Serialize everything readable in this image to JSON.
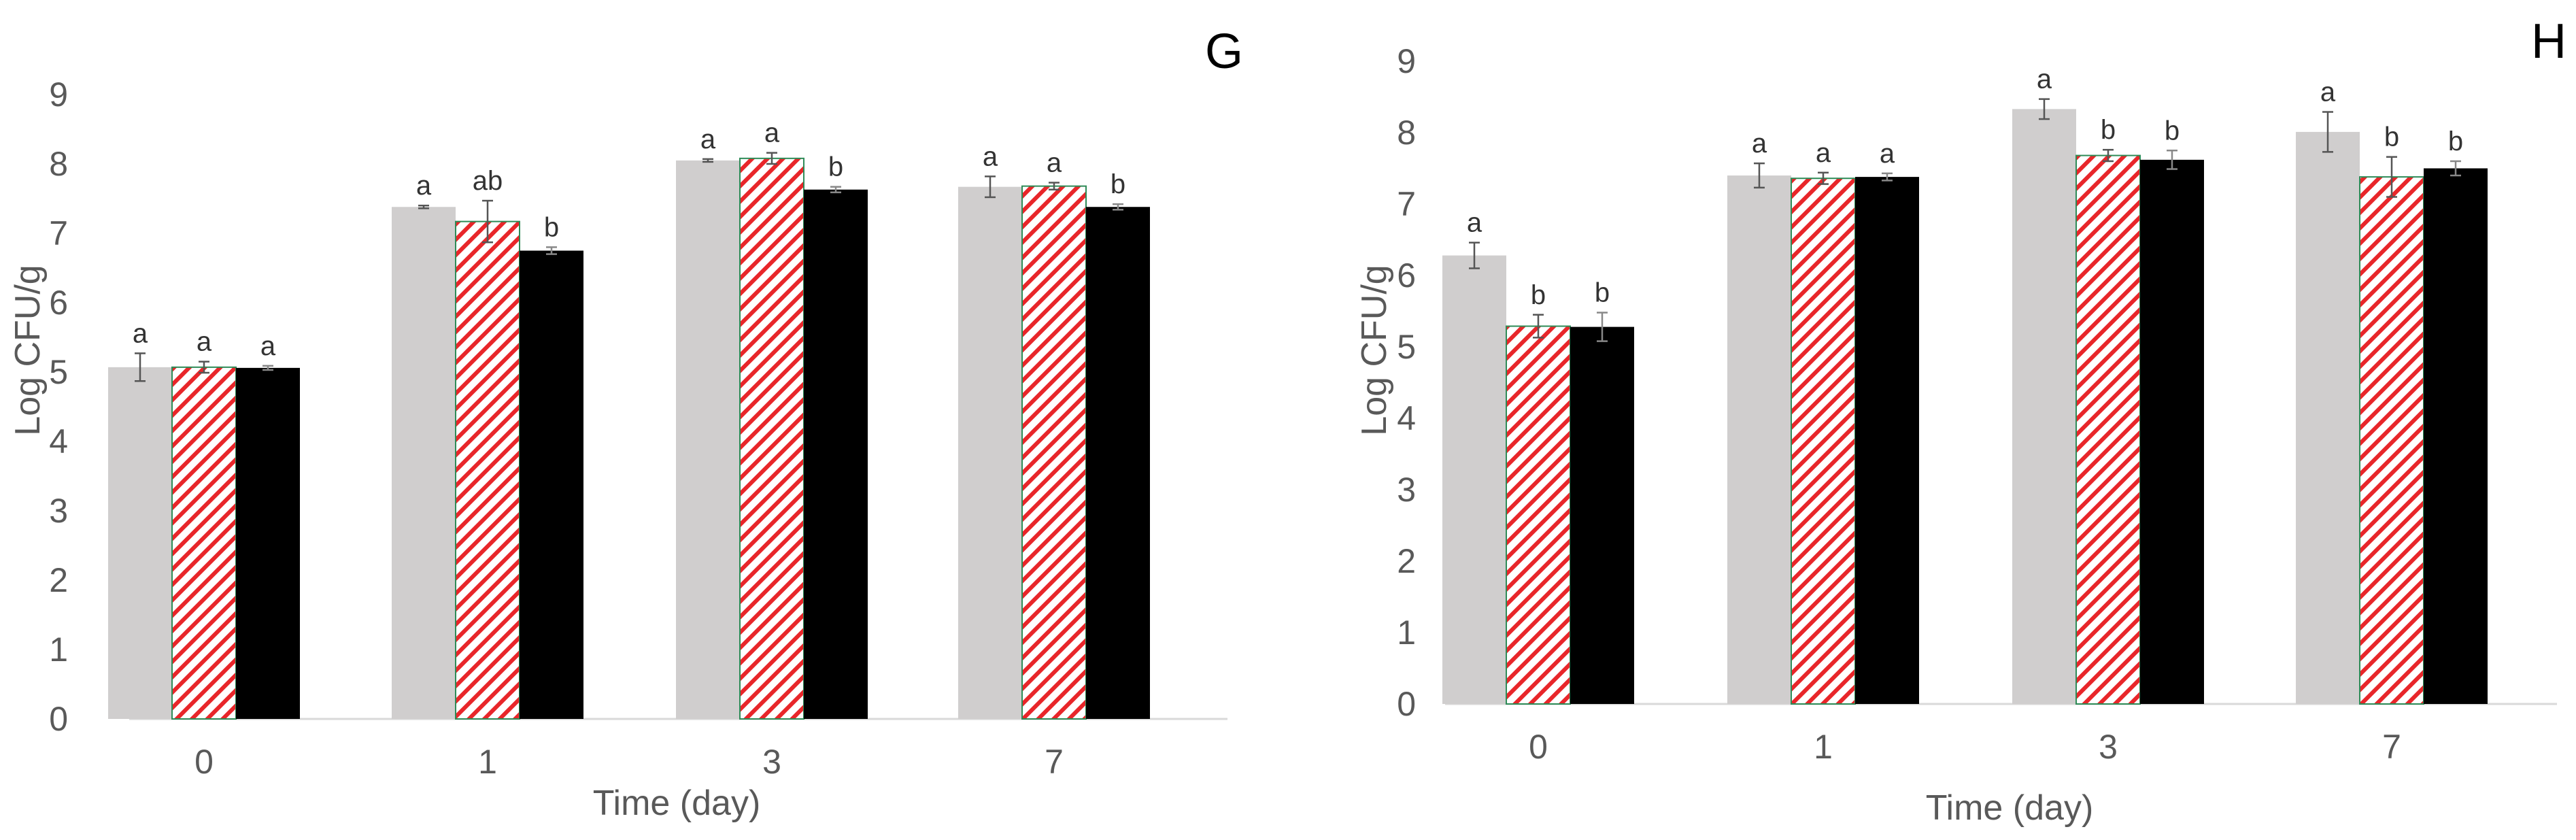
{
  "chart_data": [
    {
      "panel": "G",
      "type": "bar",
      "categories": [
        "0",
        "1",
        "3",
        "7"
      ],
      "xlabel": "Time (day)",
      "ylabel": "Log CFU/g",
      "ylim": [
        0,
        9
      ],
      "yticks": [
        "0",
        "1",
        "2",
        "3",
        "4",
        "5",
        "6",
        "7",
        "8",
        "9"
      ],
      "grid": false,
      "series": [
        {
          "values": [
            5.07,
            7.38,
            8.05,
            7.67
          ],
          "errors": [
            0.2,
            0.02,
            0.02,
            0.15
          ],
          "letters": [
            "a",
            "a",
            "a",
            "a"
          ],
          "fill": "#d0cece"
        },
        {
          "values": [
            5.07,
            7.17,
            8.08,
            7.68
          ],
          "errors": [
            0.08,
            0.3,
            0.08,
            0.05
          ],
          "letters": [
            "a",
            "ab",
            "a",
            "a"
          ],
          "fill": "hatch-red"
        },
        {
          "values": [
            5.06,
            6.75,
            7.63,
            7.38
          ],
          "errors": [
            0.03,
            0.05,
            0.04,
            0.04
          ],
          "letters": [
            "a",
            "b",
            "b",
            "b"
          ],
          "fill": "#000000"
        }
      ]
    },
    {
      "panel": "H",
      "type": "bar",
      "categories": [
        "0",
        "1",
        "3",
        "7"
      ],
      "xlabel": "Time (day)",
      "ylabel": "Log CFU/g",
      "ylim": [
        0,
        9
      ],
      "yticks": [
        "0",
        "1",
        "2",
        "3",
        "4",
        "5",
        "6",
        "7",
        "8",
        "9"
      ],
      "grid": false,
      "series": [
        {
          "values": [
            6.28,
            7.4,
            8.33,
            8.01
          ],
          "errors": [
            0.18,
            0.17,
            0.14,
            0.28
          ],
          "letters": [
            "a",
            "a",
            "a",
            "a"
          ],
          "fill": "#d0cece"
        },
        {
          "values": [
            5.29,
            7.36,
            7.68,
            7.38
          ],
          "errors": [
            0.16,
            0.08,
            0.08,
            0.28
          ],
          "letters": [
            "b",
            "a",
            "b",
            "b"
          ],
          "fill": "hatch-red"
        },
        {
          "values": [
            5.28,
            7.38,
            7.62,
            7.5
          ],
          "errors": [
            0.2,
            0.05,
            0.13,
            0.1
          ],
          "letters": [
            "b",
            "a",
            "b",
            "b"
          ],
          "fill": "#000000"
        }
      ]
    }
  ],
  "colors": {
    "gray_bar": "#d0cece",
    "hatch_red": "#e8262a",
    "hatch_edge": "#2e8b57",
    "black_bar": "#000000",
    "axis_line": "#d9d9d9",
    "text": "#595959"
  }
}
